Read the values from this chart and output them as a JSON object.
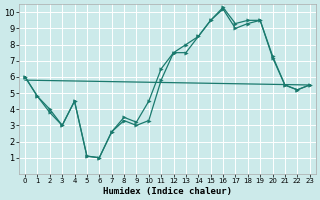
{
  "xlabel": "Humidex (Indice chaleur)",
  "bg_color": "#cceaea",
  "grid_color": "#ffffff",
  "line_color": "#1a7a6e",
  "xlim": [
    -0.5,
    23.5
  ],
  "ylim": [
    0,
    10.5
  ],
  "xticks": [
    0,
    1,
    2,
    3,
    4,
    5,
    6,
    7,
    8,
    9,
    10,
    11,
    12,
    13,
    14,
    15,
    16,
    17,
    18,
    19,
    20,
    21,
    22,
    23
  ],
  "yticks": [
    1,
    2,
    3,
    4,
    5,
    6,
    7,
    8,
    9,
    10
  ],
  "line1_x": [
    0,
    1,
    2,
    3,
    4,
    5,
    6,
    7,
    8,
    9,
    10,
    11,
    12,
    13,
    14,
    15,
    16,
    17,
    18,
    19,
    20,
    21,
    22,
    23
  ],
  "line1_y": [
    6.0,
    4.8,
    4.0,
    3.0,
    4.5,
    1.1,
    1.0,
    2.6,
    3.3,
    3.0,
    3.3,
    5.8,
    7.5,
    7.5,
    8.5,
    9.5,
    10.2,
    9.0,
    9.3,
    9.5,
    7.2,
    5.5,
    5.2,
    5.5
  ],
  "line2_x": [
    0,
    1,
    2,
    3,
    4,
    5,
    6,
    7,
    8,
    9,
    10,
    11,
    12,
    13,
    14,
    15,
    16,
    17,
    18,
    19,
    20,
    21,
    22,
    23
  ],
  "line2_y": [
    6.0,
    4.8,
    3.8,
    3.0,
    4.5,
    1.1,
    1.0,
    2.6,
    3.5,
    3.2,
    4.5,
    6.5,
    7.5,
    8.0,
    8.5,
    9.5,
    10.3,
    9.3,
    9.5,
    9.5,
    7.3,
    5.5,
    5.2,
    5.5
  ],
  "line3_x": [
    0,
    23
  ],
  "line3_y": [
    5.8,
    5.5
  ]
}
